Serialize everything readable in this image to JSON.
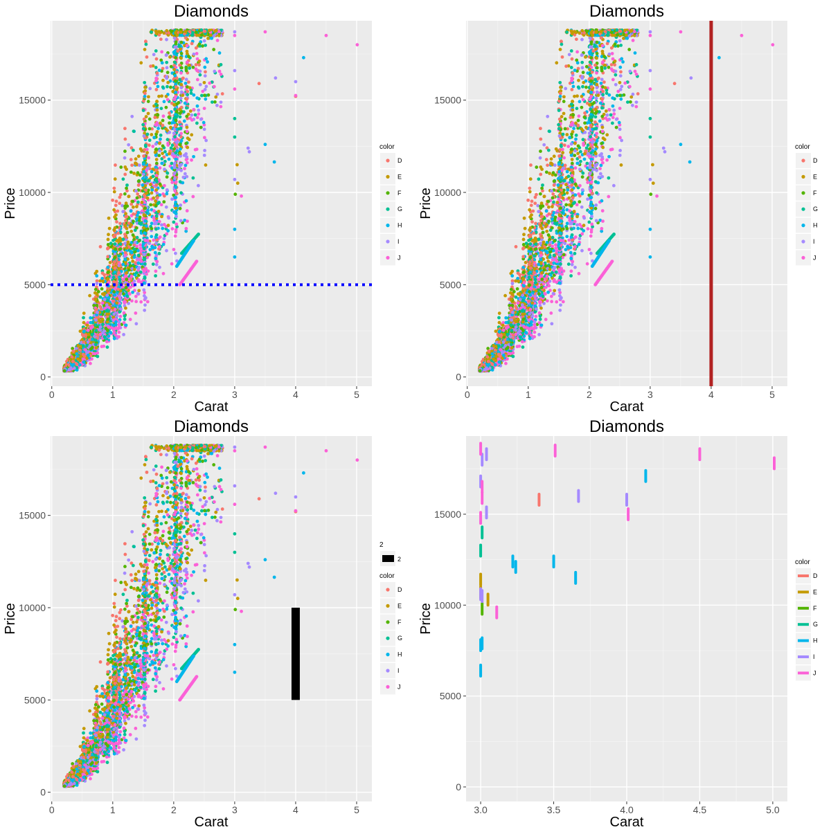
{
  "palette": {
    "D": "#F8766D",
    "E": "#C49A00",
    "F": "#53B400",
    "G": "#00C094",
    "H": "#00B6EB",
    "I": "#A58AFF",
    "J": "#FB61D7"
  },
  "theme": {
    "panel_bg": "#EBEBEB",
    "grid_major": "#FFFFFF",
    "grid_minor": "#F5F5F5",
    "axis_text": "#4D4D4D",
    "legend_key_bg": "#F2F2F2"
  },
  "chart_data": [
    {
      "type": "scatter",
      "panel": "top-left",
      "title": "Diamonds",
      "xlabel": "Carat",
      "ylabel": "Price",
      "xlim": [
        -0.02,
        5.25
      ],
      "ylim": [
        -500,
        19300
      ],
      "x_ticks": [
        0,
        1,
        2,
        3,
        4,
        5
      ],
      "x_tick_labels": [
        "0",
        "1",
        "2",
        "3",
        "4",
        "5"
      ],
      "y_ticks": [
        0,
        5000,
        10000,
        15000
      ],
      "y_tick_labels": [
        "0",
        "5000",
        "10000",
        "15000"
      ],
      "legend": {
        "title": "color",
        "position": "right",
        "entries": [
          "D",
          "E",
          "F",
          "G",
          "H",
          "I",
          "J"
        ]
      },
      "annotations": [
        {
          "kind": "hline",
          "y": 5000,
          "color": "#0000FF",
          "style": "dotted"
        }
      ]
    },
    {
      "type": "scatter",
      "panel": "top-right",
      "title": "Diamonds",
      "xlabel": "Carat",
      "ylabel": "Price",
      "xlim": [
        -0.02,
        5.25
      ],
      "ylim": [
        -500,
        19300
      ],
      "x_ticks": [
        0,
        1,
        2,
        3,
        4,
        5
      ],
      "x_tick_labels": [
        "0",
        "1",
        "2",
        "3",
        "4",
        "5"
      ],
      "y_ticks": [
        0,
        5000,
        10000,
        15000
      ],
      "y_tick_labels": [
        "0",
        "5000",
        "10000",
        "15000"
      ],
      "legend": {
        "title": "color",
        "position": "right",
        "entries": [
          "D",
          "E",
          "F",
          "G",
          "H",
          "I",
          "J"
        ]
      },
      "annotations": [
        {
          "kind": "vline",
          "x": 4,
          "color": "#B22222",
          "style": "solid"
        }
      ]
    },
    {
      "type": "scatter",
      "panel": "bottom-left",
      "title": "Diamonds",
      "xlabel": "Carat",
      "ylabel": "Price",
      "xlim": [
        -0.02,
        5.25
      ],
      "ylim": [
        -500,
        19300
      ],
      "x_ticks": [
        0,
        1,
        2,
        3,
        4,
        5
      ],
      "x_tick_labels": [
        "0",
        "1",
        "2",
        "3",
        "4",
        "5"
      ],
      "y_ticks": [
        0,
        5000,
        10000,
        15000
      ],
      "y_tick_labels": [
        "0",
        "5000",
        "10000",
        "15000"
      ],
      "legend_extra": {
        "title": "2",
        "entries": [
          "2"
        ],
        "color": "#000000"
      },
      "legend": {
        "title": "color",
        "position": "right",
        "entries": [
          "D",
          "E",
          "F",
          "G",
          "H",
          "I",
          "J"
        ]
      },
      "annotations": [
        {
          "kind": "segment",
          "x": 4,
          "y_start": 5000,
          "y_end": 10000,
          "color": "#000000"
        }
      ]
    },
    {
      "type": "scatter",
      "panel": "bottom-right",
      "title": "Diamonds",
      "xlabel": "Carat",
      "ylabel": "Price",
      "xlim": [
        2.9,
        5.1
      ],
      "ylim": [
        -800,
        19300
      ],
      "x_ticks": [
        3.0,
        3.5,
        4.0,
        4.5,
        5.0
      ],
      "x_tick_labels": [
        "3.0",
        "3.5",
        "4.0",
        "4.5",
        "5.0"
      ],
      "y_ticks": [
        0,
        5000,
        10000,
        15000
      ],
      "y_tick_labels": [
        "0",
        "5000",
        "10000",
        "15000"
      ],
      "legend": {
        "title": "color",
        "position": "right",
        "entries": [
          "D",
          "E",
          "F",
          "G",
          "H",
          "I",
          "J"
        ]
      },
      "series": [
        {
          "color": "D",
          "points": [
            [
              3.4,
              15800
            ]
          ]
        },
        {
          "color": "E",
          "points": [
            [
              3.0,
              11400
            ],
            [
              3.0,
              10700
            ],
            [
              3.05,
              10300
            ]
          ]
        },
        {
          "color": "F",
          "points": [
            [
              3.01,
              9800
            ]
          ]
        },
        {
          "color": "G",
          "points": [
            [
              3.0,
              13000
            ],
            [
              3.01,
              14000
            ]
          ]
        },
        {
          "color": "H",
          "points": [
            [
              3.0,
              6400
            ],
            [
              3.0,
              7800
            ],
            [
              3.01,
              7900
            ],
            [
              3.22,
              12400
            ],
            [
              3.24,
              12100
            ],
            [
              3.5,
              12400
            ],
            [
              3.65,
              11500
            ],
            [
              4.13,
              17100
            ]
          ]
        },
        {
          "color": "I",
          "points": [
            [
              3.0,
              16800
            ],
            [
              3.0,
              10600
            ],
            [
              3.01,
              18000
            ],
            [
              3.01,
              10500
            ],
            [
              3.04,
              15100
            ],
            [
              3.04,
              18300
            ],
            [
              3.67,
              16000
            ],
            [
              4.0,
              15800
            ]
          ]
        },
        {
          "color": "J",
          "points": [
            [
              3.0,
              18600
            ],
            [
              3.01,
              16500
            ],
            [
              3.01,
              15900
            ],
            [
              3.0,
              14800
            ],
            [
              3.11,
              9600
            ],
            [
              3.51,
              18500
            ],
            [
              4.01,
              15000
            ],
            [
              4.5,
              18300
            ],
            [
              5.01,
              17800
            ]
          ]
        }
      ]
    }
  ]
}
